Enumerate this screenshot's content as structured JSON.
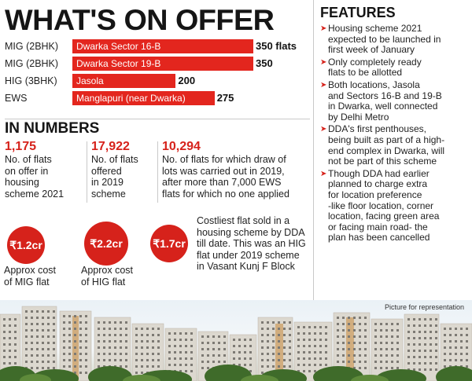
{
  "title": "WHAT'S ON OFFER",
  "chart_data": {
    "type": "bar",
    "orientation": "horizontal",
    "categories": [
      "MIG (2BHK)",
      "MIG (2BHK)",
      "HIG (3BHK)",
      "EWS"
    ],
    "locations": [
      "Dwarka Sector 16-B",
      "Dwarka Sector 19-B",
      "Jasola",
      "Manglapuri (near Dwarka)"
    ],
    "values": [
      350,
      350,
      200,
      275
    ],
    "value_labels": [
      "350 flats",
      "350",
      "200",
      "275"
    ],
    "bar_color": "#e3261e"
  },
  "in_numbers": {
    "heading": "IN NUMBERS",
    "stats": [
      {
        "value": "1,175",
        "lines": [
          "No. of flats",
          "on offer in",
          "housing",
          "scheme 2021"
        ]
      },
      {
        "value": "17,922",
        "lines": [
          "No. of flats",
          "offered",
          "in 2019",
          "scheme"
        ]
      },
      {
        "value": "10,294",
        "lines": [
          "No. of flats for which draw of",
          "lots was carried out in 2019,",
          "after more than 7,000 EWS",
          "flats for which no one applied"
        ]
      }
    ],
    "costs": [
      {
        "amount": "₹1.2cr",
        "lines": [
          "Approx cost",
          "of MIG flat"
        ]
      },
      {
        "amount": "₹2.2cr",
        "lines": [
          "Approx cost",
          "of HIG flat"
        ]
      },
      {
        "amount": "₹1.7cr",
        "lines": [
          "Costliest flat sold in a",
          "housing scheme by DDA",
          "till date. This was an HIG",
          "flat under 2019 scheme",
          "in Vasant Kunj F Block"
        ]
      }
    ],
    "accent_color": "#d6221b"
  },
  "features": {
    "heading": "FEATURES",
    "items": [
      [
        "Housing scheme 2021",
        "expected to be launched in",
        "first week of January"
      ],
      [
        "Only completely ready",
        "flats to be allotted"
      ],
      [
        "Both locations, Jasola",
        "and Sectors 16-B and 19-B",
        "in Dwarka, well connected",
        "by Delhi Metro"
      ],
      [
        "DDA's first penthouses,",
        "being built as part of a high-",
        "end complex in Dwarka, will",
        "not be part of this scheme"
      ],
      [
        "Though DDA had earlier",
        "planned to charge extra",
        "for location preference",
        "-like floor location, corner",
        "location, facing green area",
        "or facing main road- the",
        "plan has been cancelled"
      ]
    ]
  },
  "photo_caption": "Picture for representation"
}
